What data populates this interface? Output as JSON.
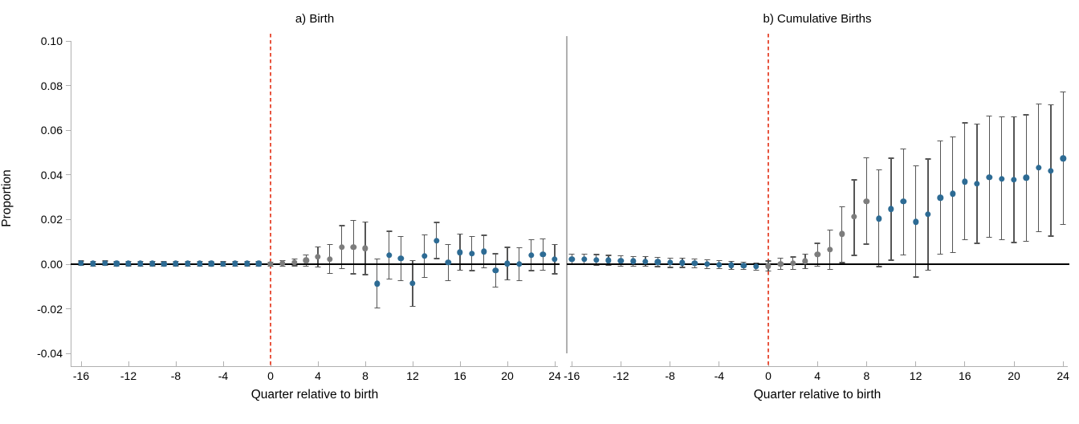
{
  "chart_data": {
    "type": "scatter",
    "subtype": "event-study-with-error-bars",
    "ylabel": "Proportion",
    "ylim": [
      -0.04,
      0.1
    ],
    "grid": false,
    "legend": false,
    "y_ticks": [
      {
        "v": 0.1,
        "label": "0.10"
      },
      {
        "v": 0.08,
        "label": "0.08"
      },
      {
        "v": 0.06,
        "label": "0.06"
      },
      {
        "v": 0.04,
        "label": "0.04"
      },
      {
        "v": 0.02,
        "label": "0.02"
      },
      {
        "v": 0.0,
        "label": "0.00"
      },
      {
        "v": -0.02,
        "label": "-0.02"
      },
      {
        "v": -0.04,
        "label": "-0.04"
      }
    ],
    "vline": {
      "x": 0,
      "style": "dashed",
      "color": "#e8553f"
    },
    "hline": {
      "y": 0,
      "color": "#000000"
    },
    "colors": {
      "blue_point": "#2d6b94",
      "gray_point": "#7d7d7d",
      "error_bar": "#555555",
      "axis": "#b0b0b0",
      "zero_line": "#000000",
      "event_line": "#e8553f",
      "divider": "#b0b0b0"
    },
    "panels": [
      {
        "title": "a) Birth",
        "xlabel": "Quarter relative to birth",
        "xlim": [
          -16,
          24
        ],
        "x_ticks": [
          -16,
          -12,
          -8,
          -4,
          0,
          4,
          8,
          12,
          16,
          20,
          24
        ],
        "points": [
          {
            "q": -16,
            "v": 0.0004,
            "lo": -0.0006,
            "hi": 0.0014,
            "group": "blue"
          },
          {
            "q": -15,
            "v": 0.0002,
            "lo": -0.0008,
            "hi": 0.0012,
            "group": "blue"
          },
          {
            "q": -14,
            "v": 0.0004,
            "lo": -0.0006,
            "hi": 0.0014,
            "group": "blue"
          },
          {
            "q": -13,
            "v": 0.0002,
            "lo": -0.0008,
            "hi": 0.0012,
            "group": "blue"
          },
          {
            "q": -12,
            "v": 0.0003,
            "lo": -0.0007,
            "hi": 0.0013,
            "group": "blue"
          },
          {
            "q": -11,
            "v": 0.0002,
            "lo": -0.0008,
            "hi": 0.0012,
            "group": "blue"
          },
          {
            "q": -10,
            "v": 0.0003,
            "lo": -0.0007,
            "hi": 0.0013,
            "group": "blue"
          },
          {
            "q": -9,
            "v": 0.0001,
            "lo": -0.0009,
            "hi": 0.0011,
            "group": "blue"
          },
          {
            "q": -8,
            "v": 0.0003,
            "lo": -0.0007,
            "hi": 0.0013,
            "group": "blue"
          },
          {
            "q": -7,
            "v": 0.0002,
            "lo": -0.0008,
            "hi": 0.0012,
            "group": "blue"
          },
          {
            "q": -6,
            "v": 0.0002,
            "lo": -0.0008,
            "hi": 0.0012,
            "group": "blue"
          },
          {
            "q": -5,
            "v": 0.0003,
            "lo": -0.0007,
            "hi": 0.0013,
            "group": "blue"
          },
          {
            "q": -4,
            "v": 0.0001,
            "lo": -0.0009,
            "hi": 0.0011,
            "group": "blue"
          },
          {
            "q": -3,
            "v": 0.0002,
            "lo": -0.0008,
            "hi": 0.0012,
            "group": "blue"
          },
          {
            "q": -2,
            "v": 0.0003,
            "lo": -0.0007,
            "hi": 0.0013,
            "group": "blue"
          },
          {
            "q": -1,
            "v": 0.0002,
            "lo": -0.0008,
            "hi": 0.0012,
            "group": "blue"
          },
          {
            "q": 0,
            "v": 0.0,
            "lo": -0.001,
            "hi": 0.001,
            "group": "gray"
          },
          {
            "q": 1,
            "v": 0.0004,
            "lo": -0.0008,
            "hi": 0.0016,
            "group": "gray"
          },
          {
            "q": 2,
            "v": 0.0008,
            "lo": -0.0007,
            "hi": 0.0023,
            "group": "gray"
          },
          {
            "q": 3,
            "v": 0.0017,
            "lo": -0.0008,
            "hi": 0.0042,
            "group": "gray"
          },
          {
            "q": 4,
            "v": 0.0032,
            "lo": -0.0013,
            "hi": 0.0077,
            "group": "gray"
          },
          {
            "q": 5,
            "v": 0.0023,
            "lo": -0.0042,
            "hi": 0.0088,
            "group": "gray"
          },
          {
            "q": 6,
            "v": 0.0077,
            "lo": -0.0019,
            "hi": 0.0173,
            "group": "gray"
          },
          {
            "q": 7,
            "v": 0.0077,
            "lo": -0.0043,
            "hi": 0.0197,
            "group": "gray"
          },
          {
            "q": 8,
            "v": 0.0071,
            "lo": -0.0047,
            "hi": 0.0189,
            "group": "gray"
          },
          {
            "q": 9,
            "v": -0.0087,
            "lo": -0.0197,
            "hi": 0.0023,
            "group": "blue"
          },
          {
            "q": 10,
            "v": 0.004,
            "lo": -0.0067,
            "hi": 0.0147,
            "group": "blue"
          },
          {
            "q": 11,
            "v": 0.0025,
            "lo": -0.0073,
            "hi": 0.0123,
            "group": "blue"
          },
          {
            "q": 12,
            "v": -0.0086,
            "lo": -0.0188,
            "hi": 0.0016,
            "group": "blue"
          },
          {
            "q": 13,
            "v": 0.0036,
            "lo": -0.006,
            "hi": 0.0132,
            "group": "blue"
          },
          {
            "q": 14,
            "v": 0.0106,
            "lo": 0.0025,
            "hi": 0.0187,
            "group": "blue"
          },
          {
            "q": 15,
            "v": 0.0007,
            "lo": -0.0074,
            "hi": 0.0088,
            "group": "blue"
          },
          {
            "q": 16,
            "v": 0.0053,
            "lo": -0.0028,
            "hi": 0.0134,
            "group": "blue"
          },
          {
            "q": 17,
            "v": 0.0047,
            "lo": -0.0029,
            "hi": 0.0123,
            "group": "blue"
          },
          {
            "q": 18,
            "v": 0.0057,
            "lo": -0.0015,
            "hi": 0.0129,
            "group": "blue"
          },
          {
            "q": 19,
            "v": -0.0028,
            "lo": -0.0103,
            "hi": 0.0047,
            "group": "blue"
          },
          {
            "q": 20,
            "v": 0.0003,
            "lo": -0.007,
            "hi": 0.0076,
            "group": "blue"
          },
          {
            "q": 21,
            "v": 0.0,
            "lo": -0.0073,
            "hi": 0.0073,
            "group": "blue"
          },
          {
            "q": 22,
            "v": 0.004,
            "lo": -0.0029,
            "hi": 0.0109,
            "group": "blue"
          },
          {
            "q": 23,
            "v": 0.0043,
            "lo": -0.0027,
            "hi": 0.0113,
            "group": "blue"
          },
          {
            "q": 24,
            "v": 0.0023,
            "lo": -0.0043,
            "hi": 0.0089,
            "group": "blue"
          }
        ]
      },
      {
        "title": "b) Cumulative Births",
        "xlabel": "Quarter relative to birth",
        "xlim": [
          -16,
          24
        ],
        "x_ticks": [
          -16,
          -12,
          -8,
          -4,
          0,
          4,
          8,
          12,
          16,
          20,
          24
        ],
        "points": [
          {
            "q": -16,
            "v": 0.0022,
            "lo": -0.0002,
            "hi": 0.0046,
            "group": "blue"
          },
          {
            "q": -15,
            "v": 0.0022,
            "lo": -0.0002,
            "hi": 0.0046,
            "group": "blue"
          },
          {
            "q": -14,
            "v": 0.0019,
            "lo": -0.0005,
            "hi": 0.0043,
            "group": "blue"
          },
          {
            "q": -13,
            "v": 0.0017,
            "lo": -0.0006,
            "hi": 0.004,
            "group": "blue"
          },
          {
            "q": -12,
            "v": 0.0015,
            "lo": -0.0008,
            "hi": 0.0038,
            "group": "blue"
          },
          {
            "q": -11,
            "v": 0.0013,
            "lo": -0.0009,
            "hi": 0.0035,
            "group": "blue"
          },
          {
            "q": -10,
            "v": 0.0012,
            "lo": -0.001,
            "hi": 0.0034,
            "group": "blue"
          },
          {
            "q": -9,
            "v": 0.001,
            "lo": -0.0011,
            "hi": 0.0031,
            "group": "blue"
          },
          {
            "q": -8,
            "v": 0.0007,
            "lo": -0.0014,
            "hi": 0.0028,
            "group": "blue"
          },
          {
            "q": -7,
            "v": 0.0006,
            "lo": -0.0014,
            "hi": 0.0026,
            "group": "blue"
          },
          {
            "q": -6,
            "v": 0.0004,
            "lo": -0.0016,
            "hi": 0.0024,
            "group": "blue"
          },
          {
            "q": -5,
            "v": 0.0,
            "lo": -0.0019,
            "hi": 0.0019,
            "group": "blue"
          },
          {
            "q": -4,
            "v": -0.0002,
            "lo": -0.0021,
            "hi": 0.0017,
            "group": "blue"
          },
          {
            "q": -3,
            "v": -0.0005,
            "lo": -0.0023,
            "hi": 0.0013,
            "group": "blue"
          },
          {
            "q": -2,
            "v": -0.0007,
            "lo": -0.0024,
            "hi": 0.001,
            "group": "blue"
          },
          {
            "q": -1,
            "v": -0.0011,
            "lo": -0.0027,
            "hi": 0.0005,
            "group": "blue"
          },
          {
            "q": 0,
            "v": -0.0008,
            "lo": -0.003,
            "hi": 0.0014,
            "group": "gray"
          },
          {
            "q": 1,
            "v": 0.0001,
            "lo": -0.0024,
            "hi": 0.0026,
            "group": "gray"
          },
          {
            "q": 2,
            "v": 0.0004,
            "lo": -0.0024,
            "hi": 0.0032,
            "group": "gray"
          },
          {
            "q": 3,
            "v": 0.0013,
            "lo": -0.002,
            "hi": 0.0046,
            "group": "gray"
          },
          {
            "q": 4,
            "v": 0.0043,
            "lo": -0.0008,
            "hi": 0.0094,
            "group": "gray"
          },
          {
            "q": 5,
            "v": 0.0065,
            "lo": -0.0023,
            "hi": 0.0154,
            "group": "gray"
          },
          {
            "q": 6,
            "v": 0.0136,
            "lo": 0.0007,
            "hi": 0.0258,
            "group": "gray"
          },
          {
            "q": 7,
            "v": 0.0212,
            "lo": 0.004,
            "hi": 0.0378,
            "group": "gray"
          },
          {
            "q": 8,
            "v": 0.0282,
            "lo": 0.009,
            "hi": 0.0477,
            "group": "gray"
          },
          {
            "q": 9,
            "v": 0.0204,
            "lo": -0.0011,
            "hi": 0.0423,
            "group": "blue"
          },
          {
            "q": 10,
            "v": 0.0247,
            "lo": 0.0018,
            "hi": 0.0475,
            "group": "blue"
          },
          {
            "q": 11,
            "v": 0.0282,
            "lo": 0.0042,
            "hi": 0.0517,
            "group": "blue"
          },
          {
            "q": 12,
            "v": 0.019,
            "lo": -0.0058,
            "hi": 0.0441,
            "group": "blue"
          },
          {
            "q": 13,
            "v": 0.0223,
            "lo": -0.0026,
            "hi": 0.0471,
            "group": "blue"
          },
          {
            "q": 14,
            "v": 0.0297,
            "lo": 0.0046,
            "hi": 0.0552,
            "group": "blue"
          },
          {
            "q": 15,
            "v": 0.0315,
            "lo": 0.0052,
            "hi": 0.057,
            "group": "blue"
          },
          {
            "q": 16,
            "v": 0.0369,
            "lo": 0.0109,
            "hi": 0.0633,
            "group": "blue"
          },
          {
            "q": 17,
            "v": 0.0361,
            "lo": 0.0094,
            "hi": 0.0627,
            "group": "blue"
          },
          {
            "q": 18,
            "v": 0.039,
            "lo": 0.0121,
            "hi": 0.0663,
            "group": "blue"
          },
          {
            "q": 19,
            "v": 0.0381,
            "lo": 0.0109,
            "hi": 0.0661,
            "group": "blue"
          },
          {
            "q": 20,
            "v": 0.0378,
            "lo": 0.0097,
            "hi": 0.0661,
            "group": "blue"
          },
          {
            "q": 21,
            "v": 0.0387,
            "lo": 0.0103,
            "hi": 0.0669,
            "group": "blue"
          },
          {
            "q": 22,
            "v": 0.0432,
            "lo": 0.0145,
            "hi": 0.0717,
            "group": "blue"
          },
          {
            "q": 23,
            "v": 0.0417,
            "lo": 0.0126,
            "hi": 0.0714,
            "group": "blue"
          },
          {
            "q": 24,
            "v": 0.0474,
            "lo": 0.0178,
            "hi": 0.0771,
            "group": "blue"
          }
        ]
      }
    ]
  }
}
